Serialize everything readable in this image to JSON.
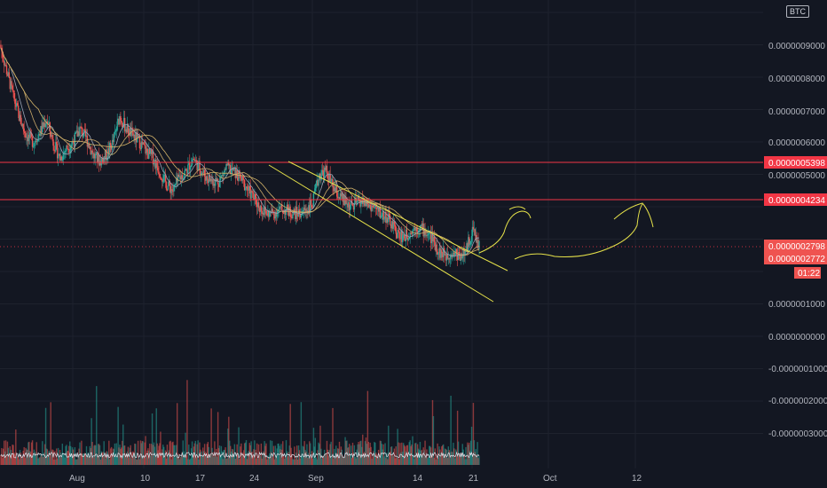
{
  "currency": "BTC",
  "price_axis_labels": [
    "0.0000009000",
    "0.0000008000",
    "0.0000007000",
    "0.0000006000",
    "0.0000005000",
    "0.0000001000",
    "0.0000000000",
    "-0.0000001000",
    "-0.0000002000",
    "-0.0000003000"
  ],
  "date_labels": [
    "Aug",
    "10",
    "17",
    "24",
    "Sep",
    "14",
    "21",
    "Oct",
    "12"
  ],
  "price_tags": {
    "upper_resistance": "0.0000005398",
    "lower_resistance": "0.0000004234",
    "tag_a": "0.0000002798",
    "tag_b": "0.0000002772",
    "countdown": "01:22"
  },
  "colors": {
    "background": "#131722",
    "up": "#26a69a",
    "down": "#ef5350",
    "resistance_line": "#f23645",
    "trend_line": "#e6e24a",
    "ma_line": "#d4b46a"
  },
  "chart_data": {
    "type": "candlestick",
    "title": "",
    "xlabel": "",
    "ylabel": "",
    "ylim": [
      -4e-07,
      1e-06
    ],
    "x_ticks": [
      "Aug",
      "10",
      "17",
      "24",
      "Sep",
      "14",
      "21",
      "Oct",
      "12"
    ],
    "horizontal_levels": [
      5.398e-07,
      4.234e-07
    ],
    "last_price": 2.798e-07,
    "close_series": [
      9e-07,
      8.2e-07,
      7.4e-07,
      6.7e-07,
      6.2e-07,
      6e-07,
      6.3e-07,
      6.7e-07,
      6e-07,
      5.5e-07,
      5.8e-07,
      6e-07,
      6.4e-07,
      6.1e-07,
      5.6e-07,
      5.4e-07,
      5.6e-07,
      6e-07,
      6.8e-07,
      6.4e-07,
      6.2e-07,
      6e-07,
      5.7e-07,
      5.5e-07,
      5.1e-07,
      4.7e-07,
      4.5e-07,
      4.9e-07,
      5.1e-07,
      5.5e-07,
      5.2e-07,
      4.9e-07,
      4.8e-07,
      4.8e-07,
      5.2e-07,
      5.1e-07,
      4.9e-07,
      4.6e-07,
      4.3e-07,
      4e-07,
      3.8e-07,
      3.8e-07,
      3.9e-07,
      3.9e-07,
      3.8e-07,
      3.8e-07,
      3.9e-07,
      4.1e-07,
      5e-07,
      5.1e-07,
      4.6e-07,
      4.3e-07,
      4.1e-07,
      4e-07,
      4.2e-07,
      4.1e-07,
      4e-07,
      3.8e-07,
      3.7e-07,
      3.4e-07,
      3.1e-07,
      3.1e-07,
      3.3e-07,
      3.4e-07,
      3.2e-07,
      3e-07,
      2.6e-07,
      2.5e-07,
      2.6e-07,
      2.5e-07,
      2.6e-07,
      3.3e-07,
      2.8e-07
    ]
  }
}
